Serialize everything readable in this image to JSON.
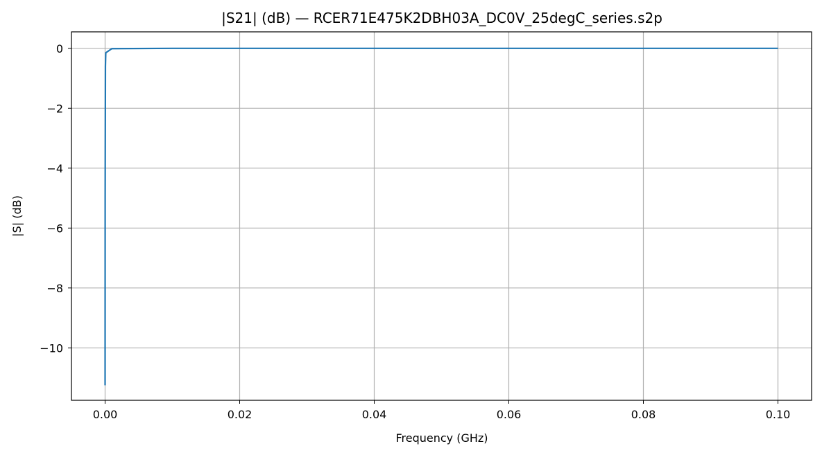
{
  "chart_data": {
    "type": "line",
    "title": "|S21| (dB) — RCER71E475K2DBH03A_DC0V_25degC_series.s2p",
    "xlabel": "Frequency (GHz)",
    "ylabel": "|S| (dB)",
    "xlim": [
      -0.005,
      0.105
    ],
    "ylim": [
      -11.75,
      0.55
    ],
    "xticks": [
      0.0,
      0.02,
      0.04,
      0.06,
      0.08,
      0.1
    ],
    "xtick_labels": [
      "0.00",
      "0.02",
      "0.04",
      "0.06",
      "0.08",
      "0.10"
    ],
    "yticks": [
      0,
      -2,
      -4,
      -6,
      -8,
      -10
    ],
    "ytick_labels": [
      "0",
      "−2",
      "−4",
      "−6",
      "−8",
      "−10"
    ],
    "grid": true,
    "series": [
      {
        "color": "#1f77b4",
        "x": [
          0.0,
          1e-05,
          5e-05,
          0.0001,
          0.001,
          0.01,
          0.02,
          0.04,
          0.06,
          0.08,
          0.1
        ],
        "y": [
          -11.25,
          -5.0,
          -0.6,
          -0.15,
          -0.01,
          0.0,
          0.0,
          0.0,
          0.0,
          0.0,
          0.0
        ]
      }
    ]
  }
}
